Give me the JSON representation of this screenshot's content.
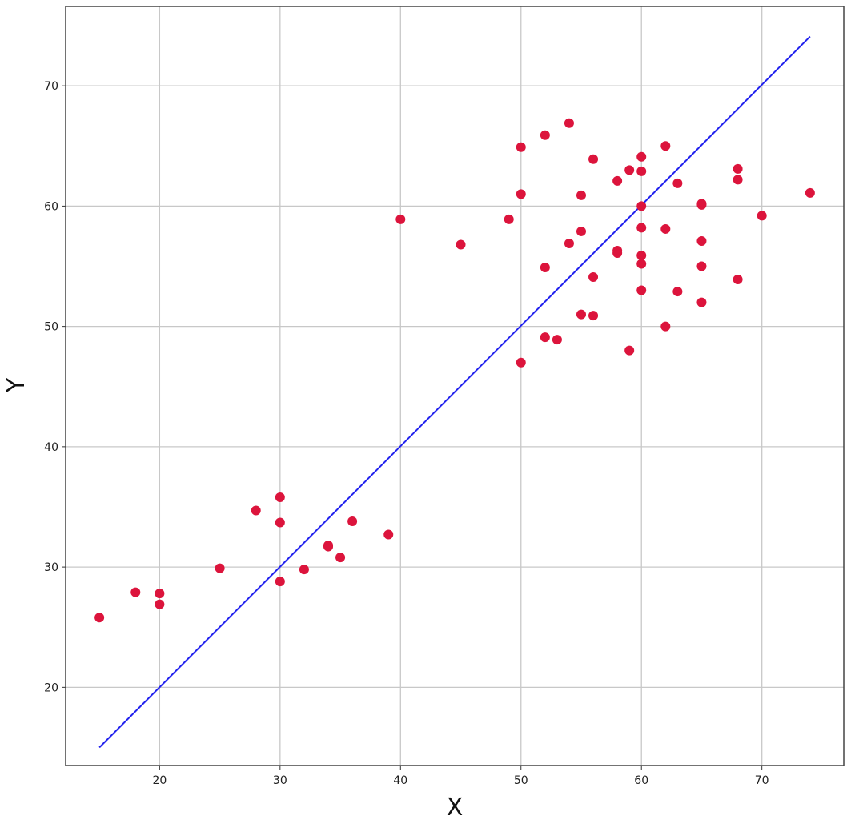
{
  "chart_data": {
    "type": "scatter",
    "title": "",
    "xlabel": "X",
    "ylabel": "Y",
    "xlim": [
      12.2,
      76.8
    ],
    "ylim": [
      13.5,
      76.6
    ],
    "xticks": [
      20,
      30,
      40,
      50,
      60,
      70
    ],
    "yticks": [
      20,
      30,
      40,
      50,
      60,
      70
    ],
    "grid": true,
    "legend": "none",
    "colors": {
      "points": "#dc143c",
      "line": "#2222ee",
      "grid": "#c8c8c8",
      "frame": "#444444"
    },
    "series": [
      {
        "type": "scatter",
        "points": [
          [
            15,
            25.8
          ],
          [
            18,
            27.9
          ],
          [
            20,
            27.8
          ],
          [
            20,
            26.9
          ],
          [
            25,
            29.9
          ],
          [
            28,
            34.7
          ],
          [
            30,
            35.8
          ],
          [
            30,
            33.7
          ],
          [
            30,
            28.8
          ],
          [
            32,
            29.8
          ],
          [
            34,
            31.8
          ],
          [
            34,
            31.7
          ],
          [
            35,
            30.8
          ],
          [
            36,
            33.8
          ],
          [
            39,
            32.7
          ],
          [
            40,
            58.9
          ],
          [
            45,
            56.8
          ],
          [
            49,
            58.9
          ],
          [
            50,
            64.9
          ],
          [
            50,
            61.0
          ],
          [
            50,
            47.0
          ],
          [
            52,
            65.9
          ],
          [
            52,
            54.9
          ],
          [
            52,
            49.1
          ],
          [
            53,
            48.9
          ],
          [
            54,
            66.9
          ],
          [
            54,
            56.9
          ],
          [
            55,
            60.9
          ],
          [
            55,
            57.9
          ],
          [
            55,
            51.0
          ],
          [
            56,
            63.9
          ],
          [
            56,
            54.1
          ],
          [
            56,
            50.9
          ],
          [
            58,
            62.1
          ],
          [
            58,
            56.3
          ],
          [
            58,
            56.1
          ],
          [
            59,
            63.0
          ],
          [
            59,
            48.0
          ],
          [
            60,
            64.1
          ],
          [
            60,
            62.9
          ],
          [
            60,
            60.0
          ],
          [
            60,
            58.2
          ],
          [
            60,
            55.9
          ],
          [
            60,
            55.2
          ],
          [
            60,
            53.0
          ],
          [
            62,
            65.0
          ],
          [
            62,
            58.1
          ],
          [
            62,
            50.0
          ],
          [
            63,
            61.9
          ],
          [
            63,
            52.9
          ],
          [
            65,
            60.2
          ],
          [
            65,
            60.1
          ],
          [
            65,
            57.1
          ],
          [
            65,
            55.0
          ],
          [
            65,
            52.0
          ],
          [
            68,
            63.1
          ],
          [
            68,
            62.2
          ],
          [
            68,
            53.9
          ],
          [
            70,
            59.2
          ],
          [
            74,
            61.1
          ]
        ]
      },
      {
        "type": "line",
        "points": [
          [
            15,
            15
          ],
          [
            74,
            74.1
          ]
        ]
      }
    ]
  }
}
